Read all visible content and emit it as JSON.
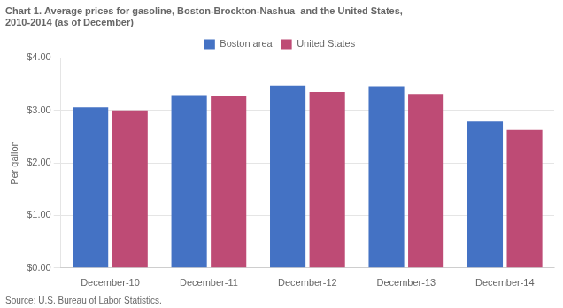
{
  "chart_data": {
    "type": "bar",
    "title": [
      "Chart 1. Average prices for gasoline, Boston-Brockton-Nashua  and the United States,",
      "2010-2014 (as of December)"
    ],
    "y_label": "Per gallon",
    "annotations": [
      "Source: U.S. Bureau of Labor Statistics."
    ],
    "categories": [
      "December-10",
      "December-11",
      "December-12",
      "December-13",
      "December-14"
    ],
    "series": [
      {
        "name": "Boston area",
        "color": "#4472C4",
        "values": [
          3.06,
          3.29,
          3.47,
          3.46,
          2.79
        ]
      },
      {
        "name": "United States",
        "color": "#BE4B75",
        "values": [
          3.0,
          3.28,
          3.35,
          3.31,
          2.63
        ]
      }
    ],
    "ylim": [
      0,
      4.0
    ],
    "yticks": [
      {
        "value": 0.0,
        "label": "$0.00"
      },
      {
        "value": 1.0,
        "label": "$1.00"
      },
      {
        "value": 2.0,
        "label": "$2.00"
      },
      {
        "value": 3.0,
        "label": "$3.00"
      },
      {
        "value": 4.0,
        "label": "$4.00"
      }
    ],
    "grid": true,
    "legend": "top"
  }
}
